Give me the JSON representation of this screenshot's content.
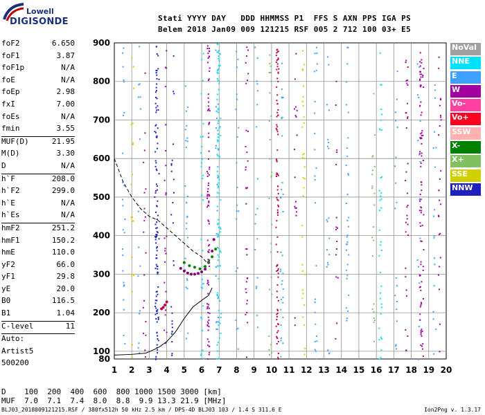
{
  "logo": {
    "line1": "Lowell",
    "line2": "DIGISONDE"
  },
  "header": {
    "line1": "Stati YYYY DAY   DDD HHMMSS P1  FFS S AXN PPS IGA PS",
    "line2": "Belem 2018 Jan09 009 121215 RSF 005 2 712 100 03+ E5"
  },
  "params": {
    "group1": [
      {
        "name": "foF2",
        "value": "6.650"
      },
      {
        "name": "foF1",
        "value": "3.87"
      },
      {
        "name": "foF1p",
        "value": "N/A"
      },
      {
        "name": "foE",
        "value": "N/A"
      },
      {
        "name": "foEp",
        "value": "2.98"
      },
      {
        "name": "fxI",
        "value": "7.00"
      },
      {
        "name": "foEs",
        "value": "N/A"
      },
      {
        "name": "fmin",
        "value": "3.55"
      }
    ],
    "group2": [
      {
        "name": "MUF(D)",
        "value": "21.95"
      },
      {
        "name": "M(D)",
        "value": "3.30"
      },
      {
        "name": "D",
        "value": "N/A"
      }
    ],
    "group3": [
      {
        "name": "h`F",
        "value": "208.0"
      },
      {
        "name": "h`F2",
        "value": "299.0"
      },
      {
        "name": "h`E",
        "value": "N/A"
      },
      {
        "name": "h`Es",
        "value": "N/A"
      }
    ],
    "group4": [
      {
        "name": "hmF2",
        "value": "251.2"
      },
      {
        "name": "hmF1",
        "value": "150.2"
      },
      {
        "name": "hmE",
        "value": "110.0"
      },
      {
        "name": "yF2",
        "value": "66.0"
      },
      {
        "name": "yF1",
        "value": "29.8"
      },
      {
        "name": "yE",
        "value": "20.0"
      },
      {
        "name": "B0",
        "value": "116.5"
      },
      {
        "name": "B1",
        "value": "1.04"
      }
    ],
    "group5": [
      {
        "name": "C-level",
        "value": "11"
      }
    ],
    "group6": [
      {
        "name": "Auto:",
        "value": ""
      },
      {
        "name": "Artist5",
        "value": ""
      },
      {
        "name": "500200",
        "value": ""
      }
    ]
  },
  "legend": [
    {
      "label": "NoVal",
      "color": "#a0a0a0"
    },
    {
      "label": "NNE",
      "color": "#00e0ff"
    },
    {
      "label": "E",
      "color": "#40a0ff"
    },
    {
      "label": "W",
      "color": "#a000a0"
    },
    {
      "label": "Vo-",
      "color": "#ff40a0"
    },
    {
      "label": "Vo+",
      "color": "#ff0020"
    },
    {
      "label": "SSW",
      "color": "#ffb0b0"
    },
    {
      "label": "X-",
      "color": "#008000"
    },
    {
      "label": "X+",
      "color": "#80c060"
    },
    {
      "label": "SSE",
      "color": "#d0d000"
    },
    {
      "label": "NNW",
      "color": "#2020c0"
    }
  ],
  "bottom": {
    "d_label": "D",
    "d_values": "    100  200  400  600  800 1000 1500 3000 [km]",
    "muf_label": "MUF",
    "muf_values": "  7.0  7.1  7.4  8.0  8.8  9.9 13.3 21.9 [MHz]"
  },
  "footer": {
    "text": "BLJ03_2018009121215.RSF / 380fx512h 50 kHz 2.5 km / DPS-4D BLJ03 103 / 1.4 S 311.6 E",
    "version": "Ion2Png v. 1.3.17"
  },
  "chart_data": {
    "type": "scatter",
    "xlabel": "",
    "ylabel": "",
    "xlim": [
      1,
      20
    ],
    "ylim": [
      80,
      900
    ],
    "x_ticks": [
      1,
      2,
      3,
      4,
      5,
      6,
      7,
      8,
      9,
      10,
      11,
      12,
      13,
      14,
      15,
      16,
      17,
      18,
      19,
      20
    ],
    "y_ticks": [
      100,
      200,
      300,
      400,
      500,
      600,
      700,
      800,
      900
    ],
    "y_tick_labels": [
      "100",
      "200",
      "300",
      "400",
      "500",
      "600",
      "700",
      "800",
      "900"
    ],
    "y_label_80": "80",
    "grid": true,
    "series": [
      {
        "color": "#800080",
        "x": [
          4.8,
          5.0,
          5.2,
          5.4,
          5.6,
          5.8,
          6.0,
          6.2,
          6.4,
          6.6,
          6.7
        ],
        "y": [
          315,
          308,
          303,
          300,
          300,
          302,
          306,
          313,
          330,
          360,
          390
        ]
      },
      {
        "color": "#008000",
        "x": [
          5.0,
          5.3,
          5.6,
          5.9,
          6.2,
          6.4,
          6.6,
          6.8
        ],
        "y": [
          330,
          322,
          318,
          314,
          320,
          332,
          345,
          365
        ]
      },
      {
        "color": "#c00040",
        "x": [
          3.7,
          3.8,
          3.9,
          4.0
        ],
        "y": [
          210,
          214,
          220,
          228
        ]
      }
    ],
    "profile_curve": {
      "x": [
        1.0,
        2.0,
        2.8,
        3.3,
        3.6,
        4.0,
        4.5,
        5.0,
        5.5,
        6.0,
        6.4,
        6.6
      ],
      "y": [
        90,
        92,
        95,
        105,
        112,
        125,
        150,
        185,
        215,
        232,
        245,
        265
      ]
    },
    "muf_curve": {
      "x": [
        1.0,
        1.5,
        2.0,
        2.5,
        3.0,
        3.5,
        4.0,
        4.5,
        5.0,
        5.5,
        6.0,
        6.3
      ],
      "y": [
        600,
        540,
        500,
        470,
        450,
        440,
        420,
        400,
        380,
        360,
        345,
        330
      ]
    }
  }
}
